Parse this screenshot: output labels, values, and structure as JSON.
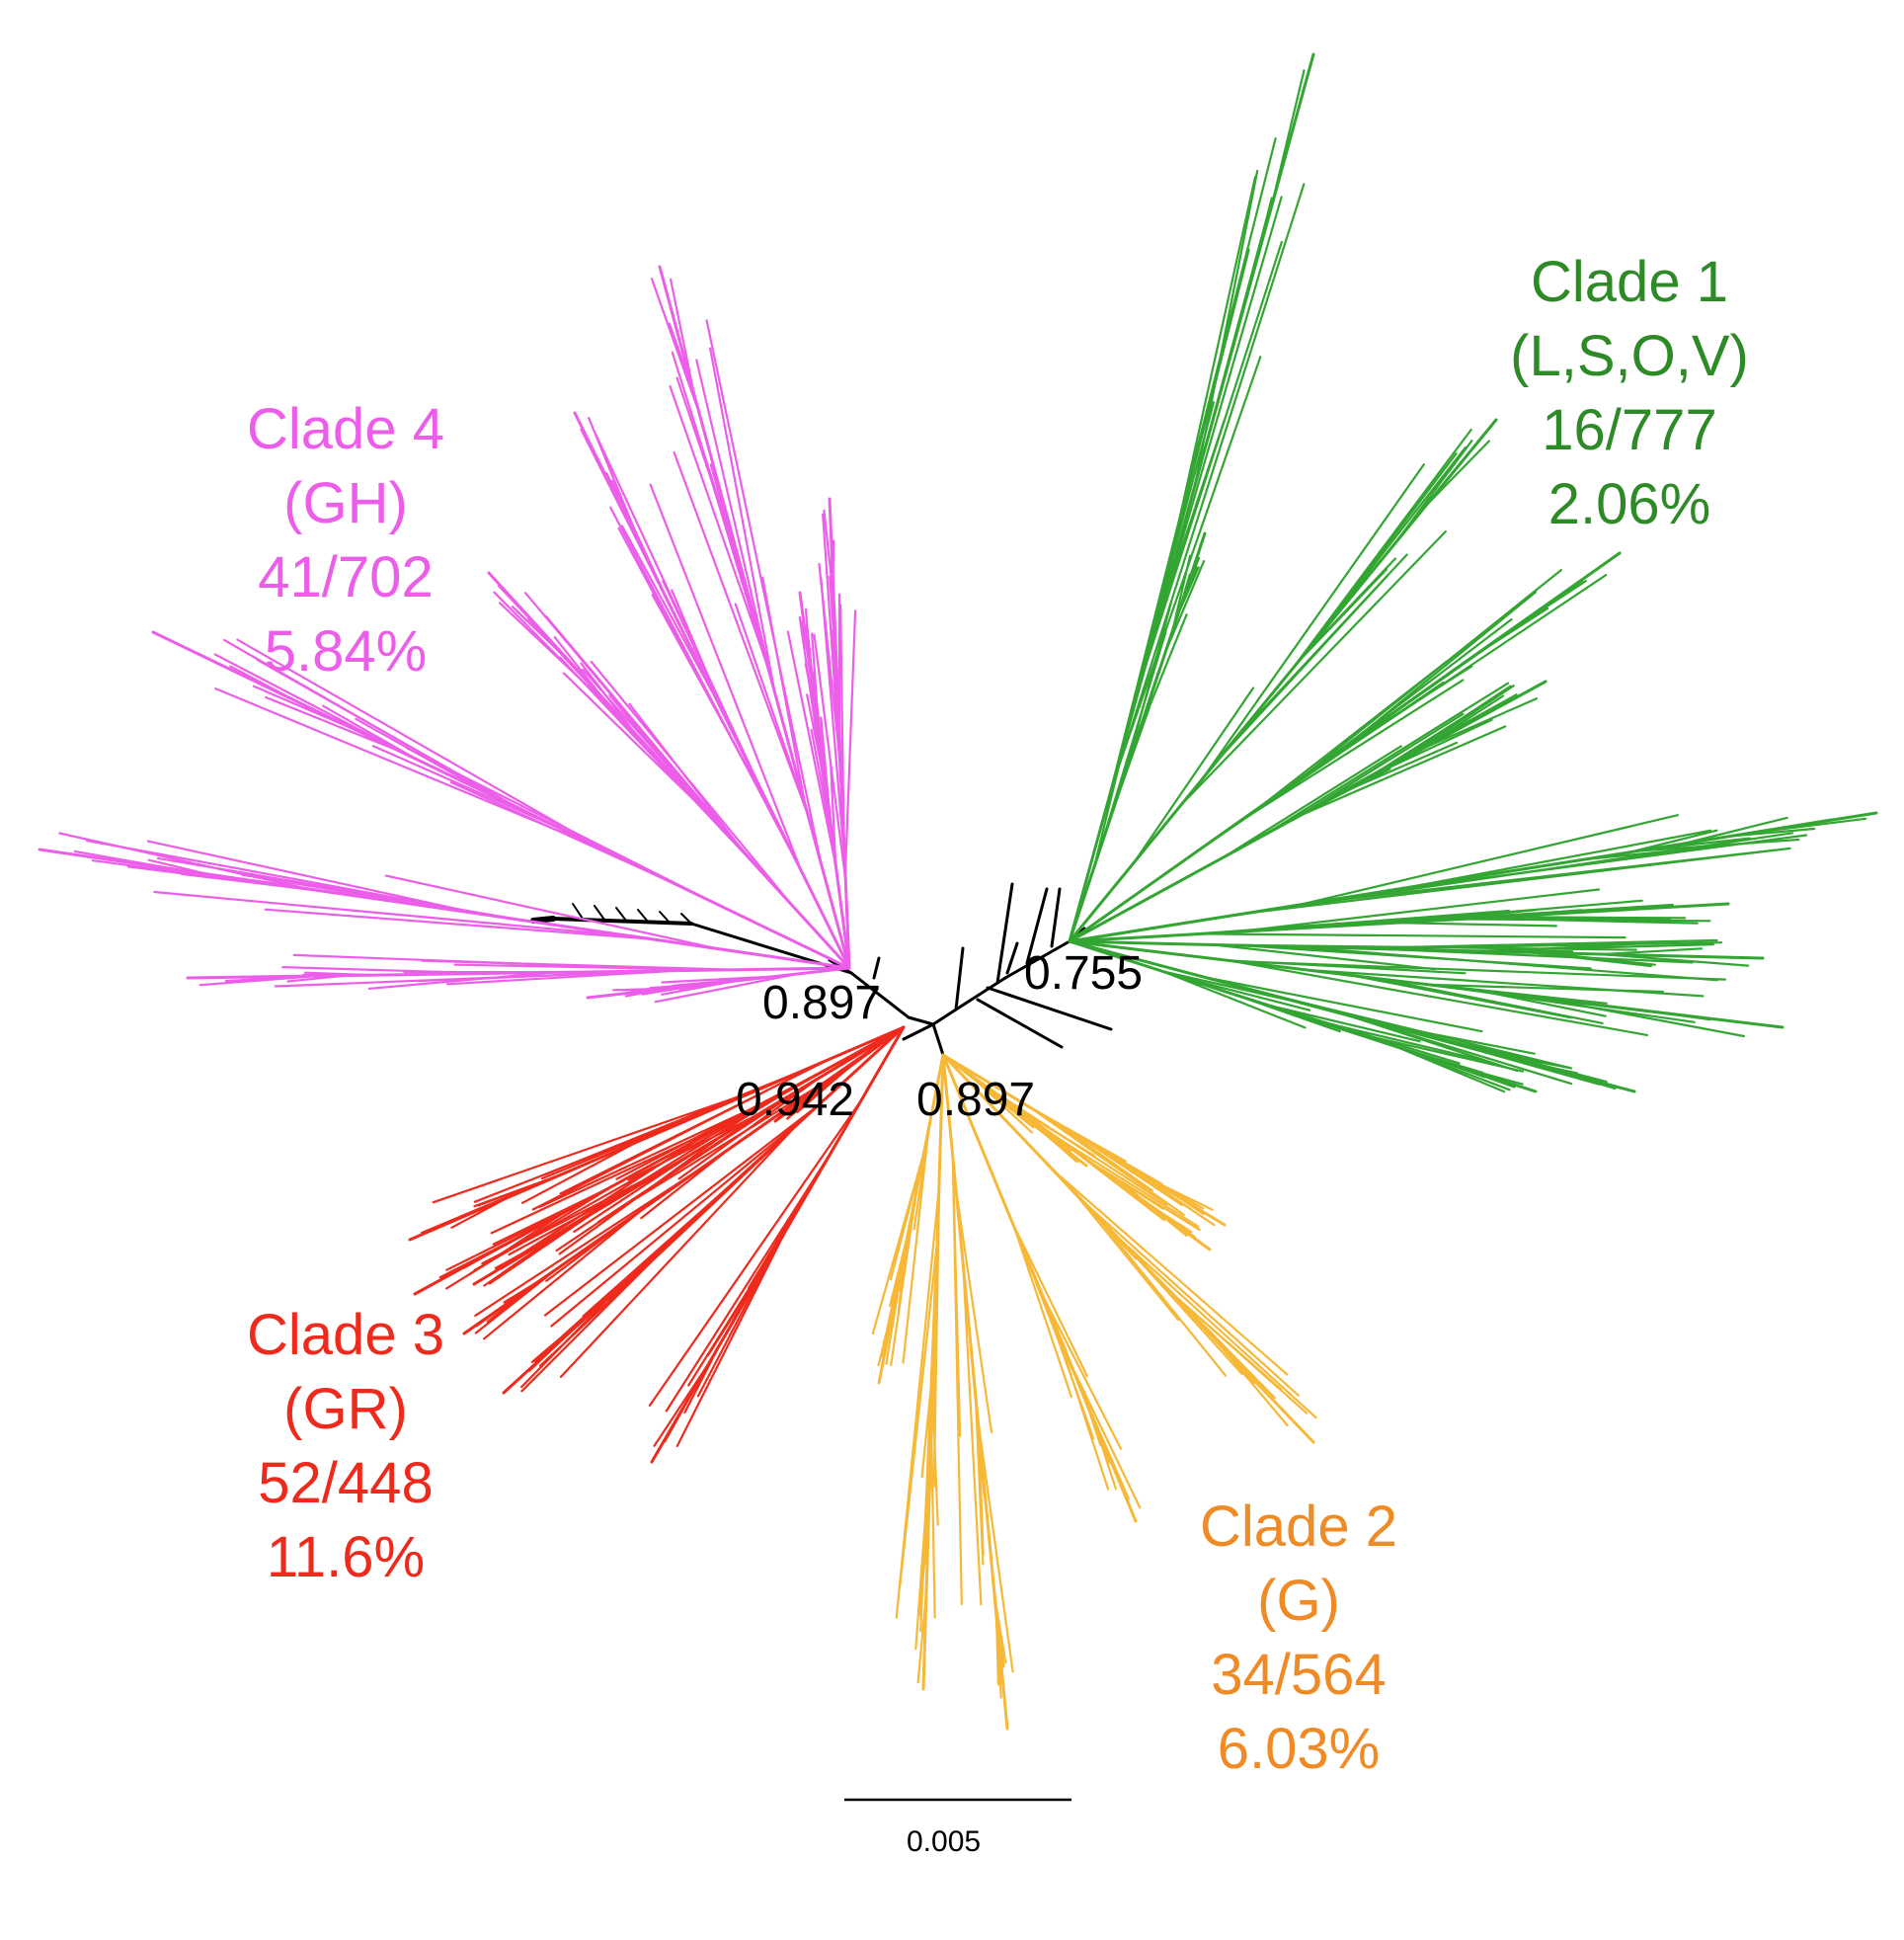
{
  "colors": {
    "clade1": "#33a532",
    "clade1_text": "#2e8a26",
    "clade2": "#f6b836",
    "clade2_text": "#f08a24",
    "clade3": "#ee2a1c",
    "clade3_text": "#ee2a1c",
    "clade4": "#ec5ee9",
    "clade4_text": "#ec5ee9",
    "backbone": "#000000"
  },
  "clades": [
    {
      "name": "Clade 1",
      "type": "(L,S,O,V)",
      "ratio": "16/777",
      "percent": "2.06%"
    },
    {
      "name": "Clade 2",
      "type": "(G)",
      "ratio": "34/564",
      "percent": "6.03%"
    },
    {
      "name": "Clade 3",
      "type": "(GR)",
      "ratio": "52/448",
      "percent": "11.6%"
    },
    {
      "name": "Clade 4",
      "type": "(GH)",
      "ratio": "41/702",
      "percent": "5.84%"
    }
  ],
  "support_values": {
    "clade1_node": "0.755",
    "clade4_node": "0.897",
    "clade3_node": "0.942",
    "clade2_node": "0.897"
  },
  "scale_bar": {
    "label": "0.005"
  }
}
